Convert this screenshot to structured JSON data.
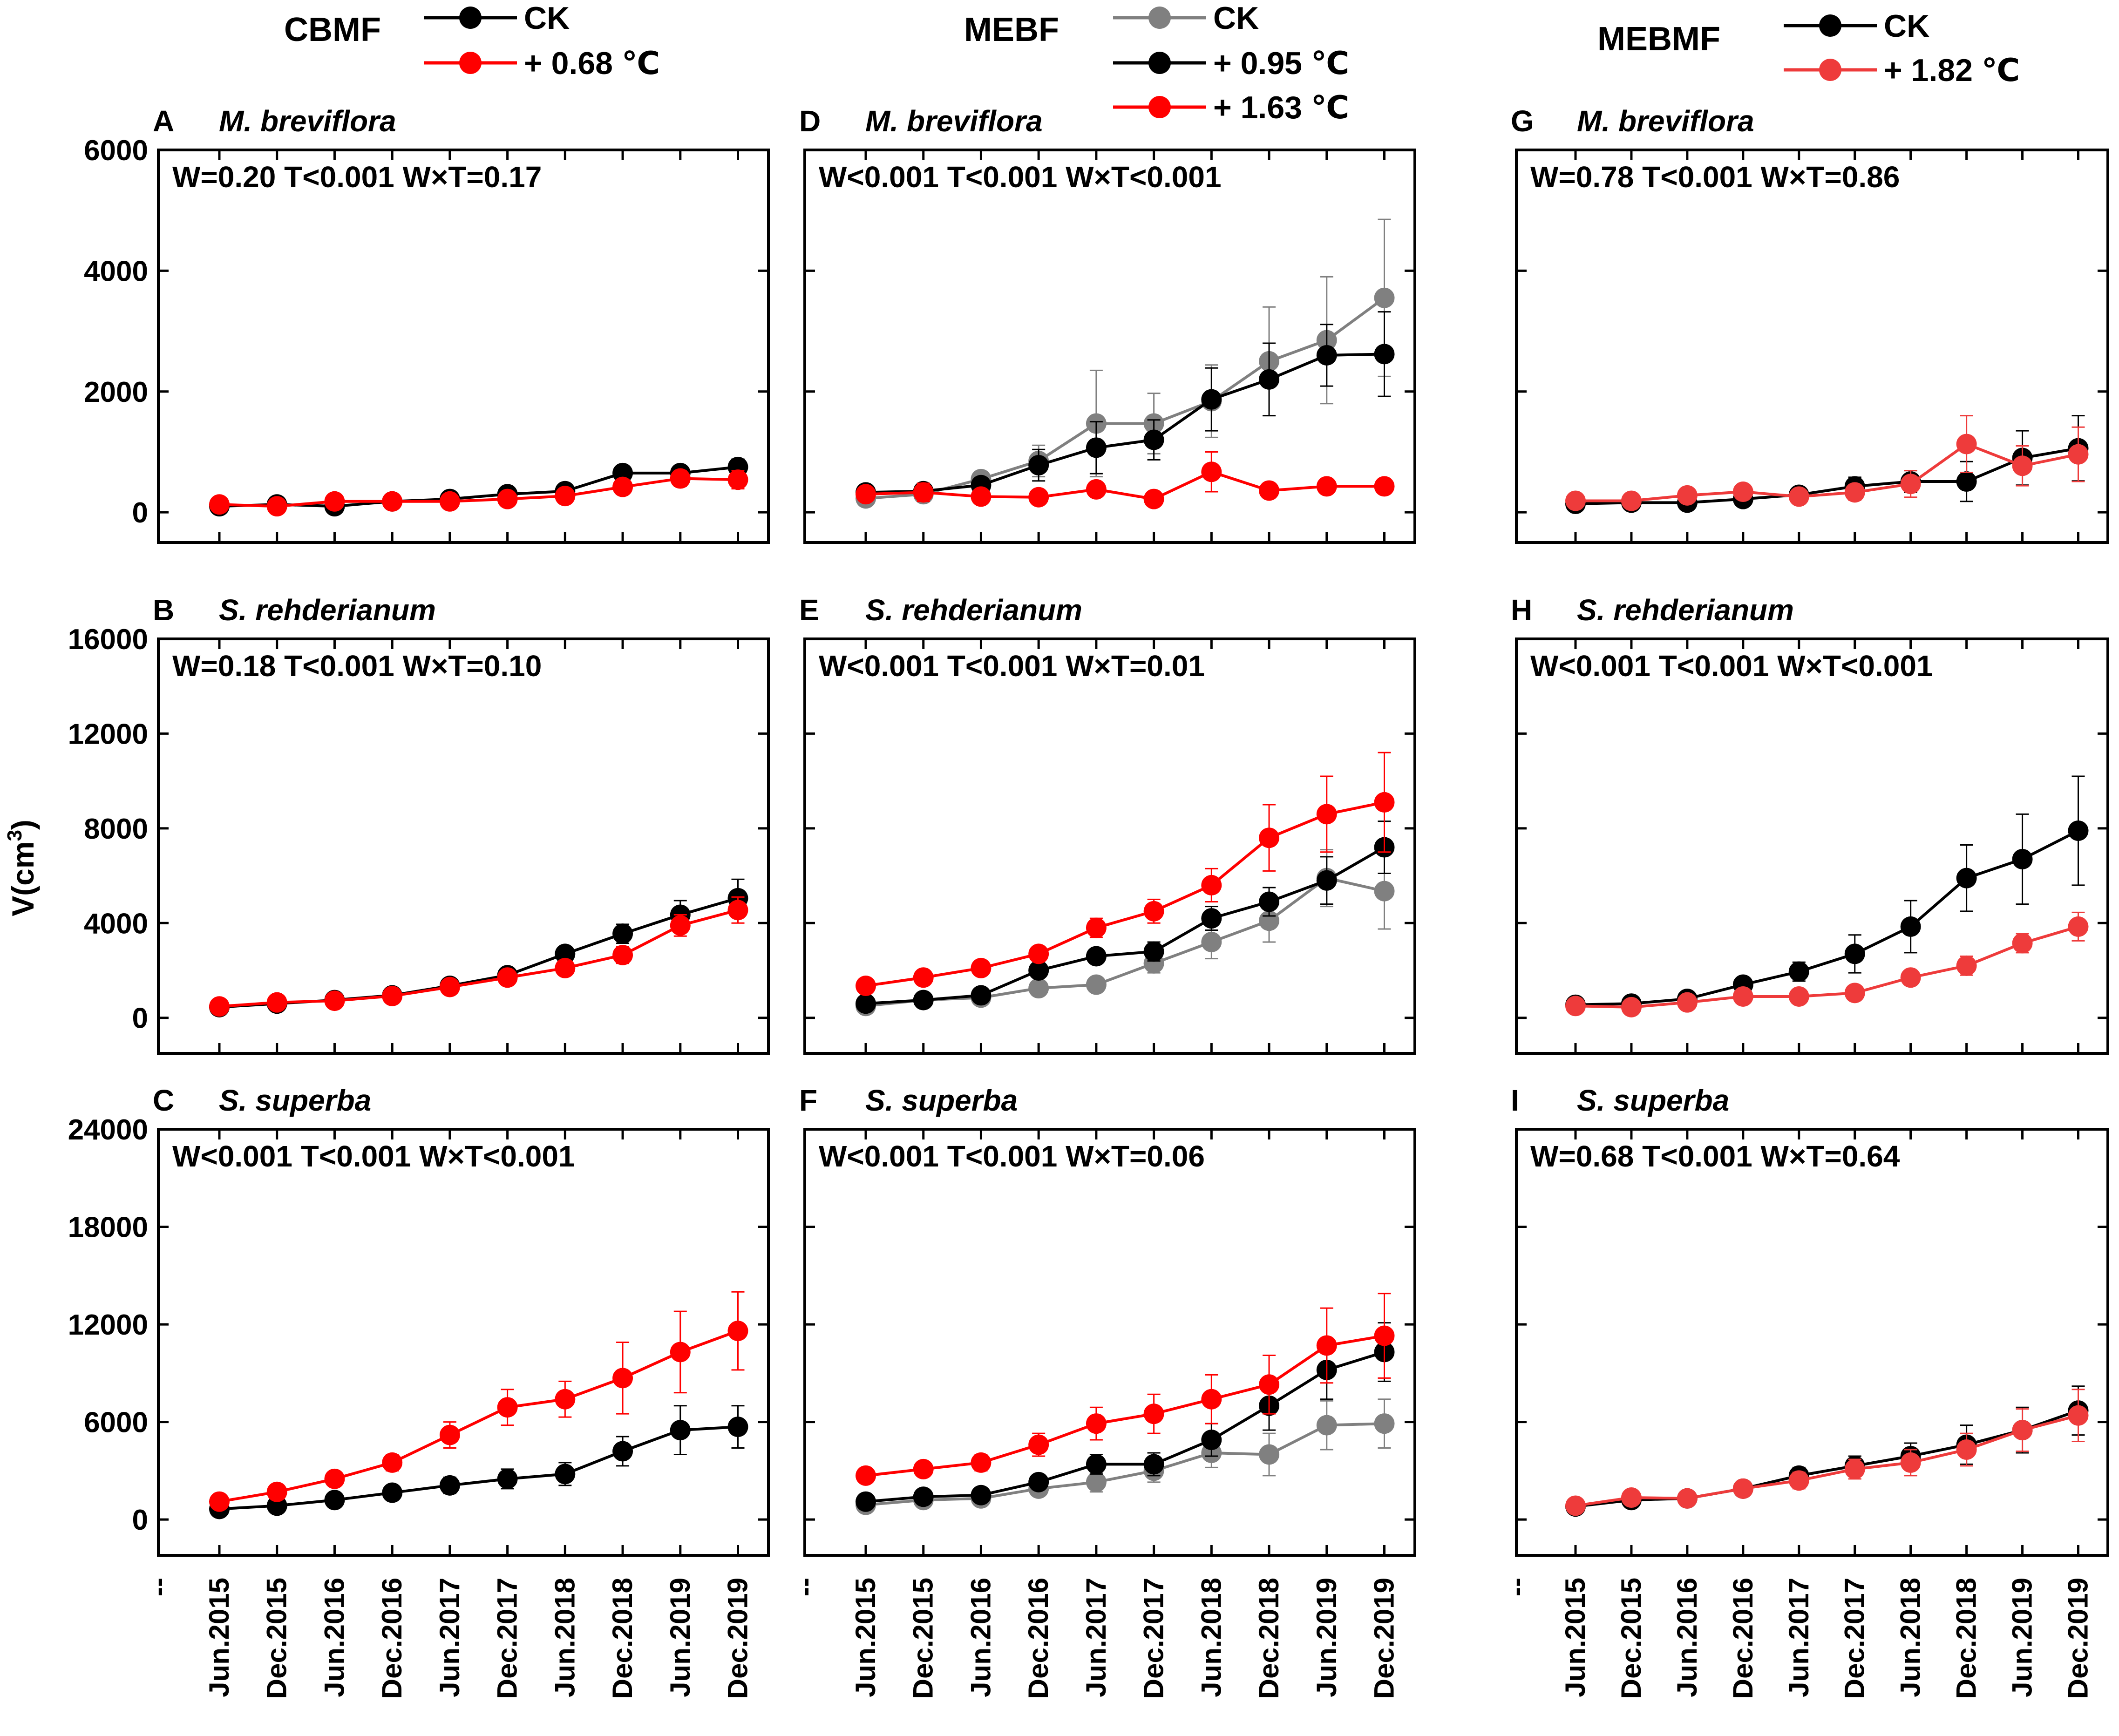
{
  "figure": {
    "ylabel": "V(cm³)",
    "ylabel_main": "V(cm",
    "ylabel_sup": "3",
    "ylabel_close": ")",
    "x_left_tick": "--",
    "categories": [
      "Jun.2015",
      "Dec.2015",
      "Jun.2016",
      "Dec.2016",
      "Jun.2017",
      "Dec.2017",
      "Jun.2018",
      "Dec.2018",
      "Jun.2019",
      "Dec.2019"
    ]
  },
  "colors": {
    "ck_black": "#000000",
    "ck_gray": "#808080",
    "warm_red": "#ff0000",
    "warm_red_light": "#ee3b3b"
  },
  "legends": [
    {
      "site": "CBMF",
      "entries": [
        {
          "label": "CK",
          "color": "#000000"
        },
        {
          "label": "+ 0.68 ℃",
          "color": "#ff0000"
        }
      ]
    },
    {
      "site": "MEBF",
      "entries": [
        {
          "label": "CK",
          "color": "#808080"
        },
        {
          "label": "+ 0.95 ℃",
          "color": "#000000"
        },
        {
          "label": "+ 1.63 ℃",
          "color": "#ff0000"
        }
      ]
    },
    {
      "site": "MEBMF",
      "entries": [
        {
          "label": "CK",
          "color": "#000000"
        },
        {
          "label": "+ 1.82 ℃",
          "color": "#ee3b3b"
        }
      ]
    }
  ],
  "chart_data": [
    {
      "panel": "A",
      "species": "M. breviflora",
      "site": "CBMF",
      "type": "line",
      "stats": "W=0.20 T<0.001 W×T=0.17",
      "ylim": [
        -500,
        6000
      ],
      "yticks": [
        0,
        2000,
        4000,
        6000
      ],
      "series": [
        {
          "name": "CK",
          "color": "#000000",
          "values": [
            100,
            130,
            100,
            180,
            220,
            300,
            350,
            650,
            650,
            750
          ],
          "errors": [
            30,
            30,
            30,
            40,
            50,
            60,
            70,
            100,
            110,
            130
          ]
        },
        {
          "name": "+ 0.68 ℃",
          "color": "#ff0000",
          "values": [
            130,
            100,
            180,
            180,
            180,
            220,
            270,
            420,
            560,
            540
          ],
          "errors": [
            30,
            30,
            40,
            40,
            40,
            60,
            80,
            120,
            130,
            150
          ]
        }
      ]
    },
    {
      "panel": "B",
      "species": "S. rehderianum",
      "site": "CBMF",
      "type": "line",
      "stats": "W=0.18 T<0.001 W×T=0.10",
      "ylim": [
        -1500,
        16000
      ],
      "yticks": [
        0,
        4000,
        8000,
        12000,
        16000
      ],
      "series": [
        {
          "name": "CK",
          "color": "#000000",
          "values": [
            450,
            600,
            750,
            950,
            1350,
            1800,
            2700,
            3550,
            4350,
            5050
          ],
          "errors": [
            60,
            70,
            80,
            100,
            150,
            200,
            300,
            400,
            600,
            800
          ]
        },
        {
          "name": "+ 0.68 ℃",
          "color": "#ff0000",
          "values": [
            480,
            650,
            720,
            920,
            1300,
            1700,
            2100,
            2650,
            3900,
            4550
          ],
          "errors": [
            60,
            70,
            80,
            100,
            150,
            200,
            250,
            350,
            450,
            550
          ]
        }
      ]
    },
    {
      "panel": "C",
      "species": "S. superba",
      "site": "CBMF",
      "type": "line",
      "stats": "W<0.001 T<0.001 W×T<0.001",
      "ylim": [
        -2200,
        24000
      ],
      "yticks": [
        0,
        6000,
        12000,
        18000,
        24000
      ],
      "series": [
        {
          "name": "CK",
          "color": "#000000",
          "values": [
            650,
            850,
            1200,
            1650,
            2100,
            2500,
            2800,
            4200,
            5500,
            5700
          ],
          "errors": [
            150,
            150,
            200,
            300,
            500,
            600,
            700,
            900,
            1500,
            1300
          ]
        },
        {
          "name": "+ 0.68 ℃",
          "color": "#ff0000",
          "values": [
            1100,
            1700,
            2500,
            3500,
            5200,
            6900,
            7400,
            8700,
            10300,
            11600
          ],
          "errors": [
            200,
            250,
            300,
            500,
            800,
            1100,
            1100,
            2200,
            2500,
            2400
          ]
        }
      ]
    },
    {
      "panel": "D",
      "species": "M. breviflora",
      "site": "MEBF",
      "type": "line",
      "stats": "W<0.001 T<0.001 W×T<0.001",
      "ylim": [
        -500,
        6000
      ],
      "yticks": [
        0,
        2000,
        4000,
        6000
      ],
      "series": [
        {
          "name": "CK",
          "color": "#808080",
          "values": [
            230,
            300,
            550,
            850,
            1470,
            1470,
            1840,
            2500,
            2850,
            3550
          ],
          "errors": [
            50,
            60,
            120,
            260,
            880,
            500,
            600,
            900,
            1050,
            1300
          ]
        },
        {
          "name": "+ 0.95 ℃",
          "color": "#000000",
          "values": [
            330,
            350,
            450,
            780,
            1070,
            1200,
            1870,
            2200,
            2600,
            2620
          ],
          "errors": [
            60,
            70,
            120,
            260,
            430,
            330,
            520,
            600,
            510,
            700
          ]
        },
        {
          "name": "+ 1.63 ℃",
          "color": "#ff0000",
          "values": [
            300,
            330,
            260,
            250,
            380,
            220,
            670,
            360,
            430,
            430
          ],
          "errors": [
            50,
            150,
            40,
            40,
            60,
            40,
            330,
            50,
            60,
            60
          ]
        }
      ]
    },
    {
      "panel": "E",
      "species": "S. rehderianum",
      "site": "MEBF",
      "type": "line",
      "stats": "W<0.001 T<0.001 W×T=0.01",
      "ylim": [
        -1500,
        16000
      ],
      "yticks": [
        0,
        4000,
        8000,
        12000,
        16000
      ],
      "series": [
        {
          "name": "CK",
          "color": "#808080",
          "values": [
            500,
            750,
            850,
            1250,
            1400,
            2300,
            3200,
            4100,
            5900,
            5350
          ],
          "errors": [
            80,
            90,
            100,
            200,
            300,
            400,
            700,
            900,
            1200,
            1600
          ]
        },
        {
          "name": "+ 0.95 ℃",
          "color": "#000000",
          "values": [
            600,
            750,
            950,
            2000,
            2600,
            2800,
            4200,
            4900,
            5800,
            7200
          ],
          "errors": [
            80,
            90,
            100,
            200,
            300,
            400,
            500,
            600,
            1000,
            1100
          ]
        },
        {
          "name": "+ 1.63 ℃",
          "color": "#ff0000",
          "values": [
            1350,
            1700,
            2100,
            2700,
            3800,
            4500,
            5600,
            7600,
            8600,
            9100
          ],
          "errors": [
            100,
            120,
            150,
            200,
            400,
            500,
            700,
            1400,
            1600,
            2100
          ]
        }
      ]
    },
    {
      "panel": "F",
      "species": "S. superba",
      "site": "MEBF",
      "type": "line",
      "stats": "W<0.001 T<0.001 W×T=0.06",
      "ylim": [
        -2200,
        24000
      ],
      "yticks": [
        0,
        6000,
        12000,
        18000,
        24000
      ],
      "series": [
        {
          "name": "CK",
          "color": "#808080",
          "values": [
            900,
            1200,
            1300,
            1900,
            2300,
            3000,
            4100,
            4000,
            5800,
            5900
          ],
          "errors": [
            200,
            250,
            300,
            400,
            600,
            700,
            900,
            1300,
            1500,
            1500
          ]
        },
        {
          "name": "+ 0.95 ℃",
          "color": "#000000",
          "values": [
            1100,
            1400,
            1500,
            2300,
            3400,
            3400,
            4900,
            7000,
            9200,
            10300
          ],
          "errors": [
            200,
            250,
            300,
            400,
            600,
            700,
            1000,
            1500,
            1800,
            1800
          ]
        },
        {
          "name": "+ 1.63 ℃",
          "color": "#ff0000",
          "values": [
            2700,
            3100,
            3500,
            4600,
            5900,
            6500,
            7400,
            8300,
            10700,
            11300
          ],
          "errors": [
            300,
            400,
            500,
            700,
            1000,
            1200,
            1500,
            1800,
            2300,
            2600
          ]
        }
      ]
    },
    {
      "panel": "G",
      "species": "M. breviflora",
      "site": "MEBMF",
      "type": "line",
      "stats": "W=0.78 T<0.001 W×T=0.86",
      "ylim": [
        -500,
        6000
      ],
      "yticks": [
        0,
        2000,
        4000,
        6000
      ],
      "series": [
        {
          "name": "CK",
          "color": "#000000",
          "values": [
            140,
            160,
            160,
            220,
            290,
            430,
            510,
            510,
            900,
            1060
          ],
          "errors": [
            30,
            30,
            40,
            50,
            60,
            150,
            180,
            330,
            450,
            540
          ]
        },
        {
          "name": "+ 1.82 ℃",
          "color": "#ee3b3b",
          "values": [
            190,
            190,
            280,
            340,
            260,
            330,
            470,
            1130,
            770,
            960
          ],
          "errors": [
            40,
            40,
            60,
            80,
            70,
            130,
            220,
            470,
            330,
            450
          ]
        }
      ]
    },
    {
      "panel": "H",
      "species": "S. rehderianum",
      "site": "MEBMF",
      "type": "line",
      "stats": "W<0.001 T<0.001 W×T<0.001",
      "ylim": [
        -1500,
        16000
      ],
      "yticks": [
        0,
        4000,
        8000,
        12000,
        16000
      ],
      "series": [
        {
          "name": "CK",
          "color": "#000000",
          "values": [
            550,
            600,
            800,
            1400,
            1950,
            2700,
            3850,
            5900,
            6700,
            7900
          ],
          "errors": [
            60,
            70,
            100,
            250,
            400,
            800,
            1100,
            1400,
            1900,
            2300
          ]
        },
        {
          "name": "+ 1.82 ℃",
          "color": "#ee3b3b",
          "values": [
            500,
            450,
            650,
            900,
            900,
            1050,
            1700,
            2200,
            3150,
            3850
          ],
          "errors": [
            60,
            60,
            80,
            100,
            100,
            150,
            250,
            400,
            400,
            600
          ]
        }
      ]
    },
    {
      "panel": "I",
      "species": "S. superba",
      "site": "MEBMF",
      "type": "line",
      "stats": "W=0.68 T<0.001 W×T=0.64",
      "ylim": [
        -2200,
        24000
      ],
      "yticks": [
        0,
        6000,
        12000,
        18000,
        24000
      ],
      "series": [
        {
          "name": "CK",
          "color": "#000000",
          "values": [
            800,
            1200,
            1300,
            1900,
            2700,
            3300,
            3900,
            4600,
            5500,
            6700
          ],
          "errors": [
            150,
            200,
            200,
            300,
            500,
            600,
            800,
            1200,
            1400,
            1500
          ]
        },
        {
          "name": "+ 1.82 ℃",
          "color": "#ee3b3b",
          "values": [
            850,
            1350,
            1300,
            1900,
            2400,
            3100,
            3500,
            4300,
            5500,
            6400
          ],
          "errors": [
            150,
            200,
            200,
            300,
            500,
            600,
            800,
            1000,
            1300,
            1600
          ]
        }
      ]
    }
  ]
}
